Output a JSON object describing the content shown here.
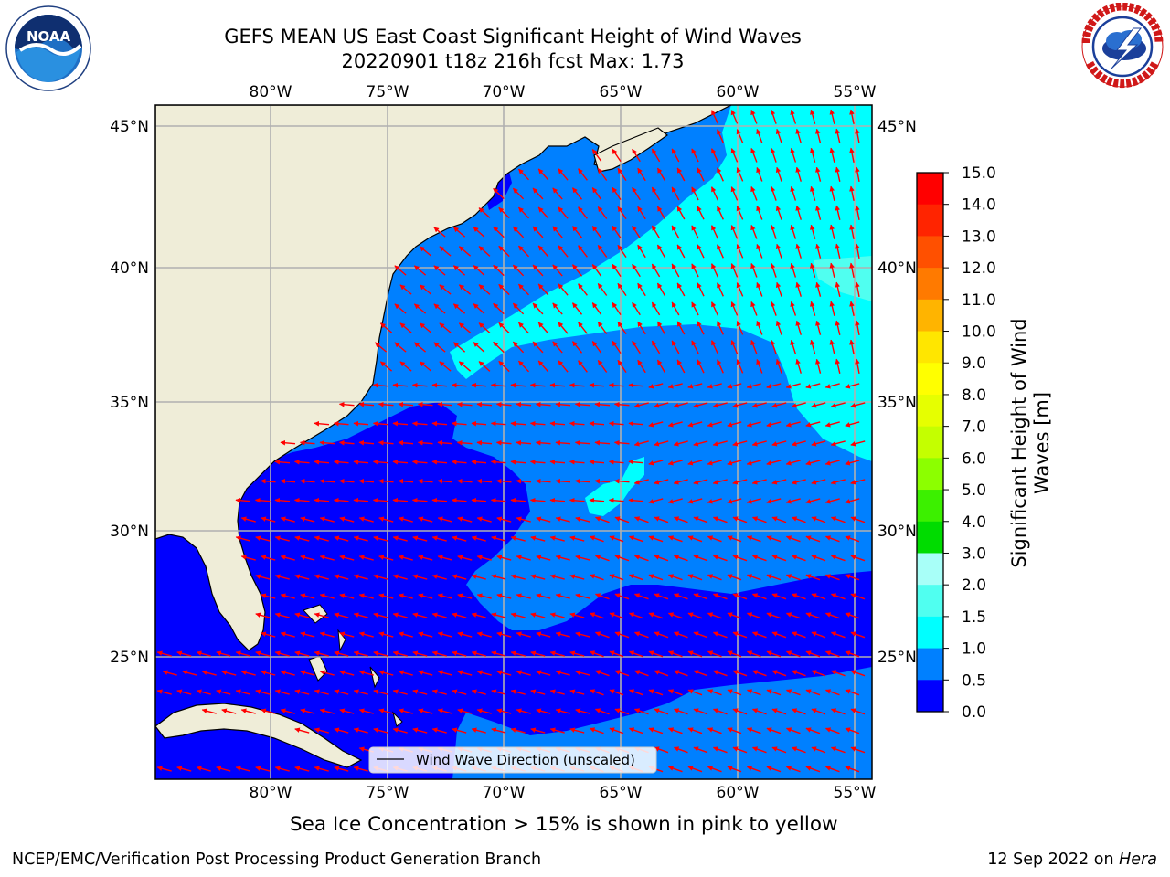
{
  "title": {
    "line1": "GEFS MEAN US East Coast Significant Height of Wind Waves",
    "line2": "20220901 t18z 216h fcst   Max: 1.73"
  },
  "logos": {
    "left": {
      "name": "noaa-logo",
      "text": "NOAA",
      "ring_text": "NATIONAL OCEANIC AND ATMOSPHERIC ADMINISTRATION · U.S. DEPARTMENT OF COMMERCE"
    },
    "right": {
      "name": "nws-logo",
      "ring_text": "NATIONAL WEATHER SERVICE"
    }
  },
  "map": {
    "lon_labels": [
      "80°W",
      "75°W",
      "70°W",
      "65°W",
      "60°W",
      "55°W"
    ],
    "lat_labels": [
      "45°N",
      "40°N",
      "35°N",
      "30°N",
      "25°N"
    ],
    "lon_ticks": [
      -80,
      -75,
      -70,
      -65,
      -60,
      -55
    ],
    "lat_ticks": [
      45,
      40,
      35,
      30,
      25
    ],
    "extent": {
      "lon_min": -85,
      "lon_max": -54.3,
      "lat_min": 20.5,
      "lat_max": 45.8
    },
    "arrow_color": "#ff0000",
    "land_color": "#efedd8",
    "legend": "Wind Wave Direction (unscaled)"
  },
  "colorbar": {
    "label": "Significant Height of Wind Waves [m]",
    "label_line1": "Significant Height of Wind",
    "label_line2": "Waves [m]",
    "ticks": [
      "15.0",
      "14.0",
      "13.0",
      "12.0",
      "11.0",
      "10.0",
      "9.0",
      "8.0",
      "7.0",
      "6.0",
      "5.0",
      "4.0",
      "3.0",
      "2.0",
      "1.5",
      "1.0",
      "0.5",
      "0.0"
    ],
    "colors_top_to_bottom": [
      "#ff0000",
      "#ff2400",
      "#ff5000",
      "#ff7a00",
      "#ff9900",
      "#ffb400",
      "#ffe600",
      "#ffff00",
      "#e6ff00",
      "#c4ff00",
      "#8cff00",
      "#3cf000",
      "#00dc00",
      "#50ff78",
      "#a8fff8",
      "#50fff0",
      "#00ffff",
      "#0080ff",
      "#0000ff"
    ]
  },
  "caption": "Sea Ice Concentration > 15% is shown in pink to yellow",
  "footer": {
    "org": "NCEP/EMC/Verification Post Processing Product Generation Branch",
    "date": "12 Sep 2022 on",
    "host": "Hera"
  }
}
